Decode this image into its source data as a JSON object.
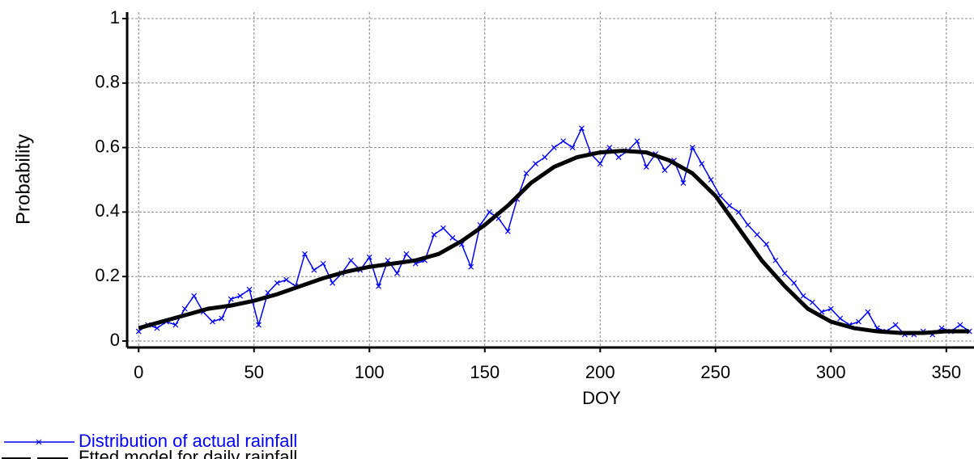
{
  "chart_data": {
    "type": "line",
    "xlabel": "DOY",
    "ylabel": "Probability",
    "xlim": [
      -5,
      362
    ],
    "ylim": [
      -0.02,
      1.02
    ],
    "xticks": [
      0,
      50,
      100,
      150,
      200,
      250,
      300,
      350
    ],
    "yticks": [
      0,
      0.2,
      0.4,
      0.6,
      0.8,
      1
    ],
    "grid": true,
    "legend": "bottom-left",
    "series": [
      {
        "name": "Distribution of actual rainfall",
        "color": "#0000ff",
        "style": "solid-marker",
        "x": [
          0,
          4,
          8,
          12,
          16,
          20,
          24,
          28,
          32,
          36,
          40,
          44,
          48,
          52,
          56,
          60,
          64,
          68,
          72,
          76,
          80,
          84,
          88,
          92,
          96,
          100,
          104,
          108,
          112,
          116,
          120,
          124,
          128,
          132,
          136,
          140,
          144,
          148,
          152,
          156,
          160,
          164,
          168,
          172,
          176,
          180,
          184,
          188,
          192,
          196,
          200,
          204,
          208,
          212,
          216,
          220,
          224,
          228,
          232,
          236,
          240,
          244,
          248,
          252,
          256,
          260,
          264,
          268,
          272,
          276,
          280,
          284,
          288,
          292,
          296,
          300,
          304,
          308,
          312,
          316,
          320,
          324,
          328,
          332,
          336,
          340,
          344,
          348,
          352,
          356,
          360
        ],
        "values": [
          0.03,
          0.05,
          0.04,
          0.06,
          0.05,
          0.1,
          0.14,
          0.09,
          0.06,
          0.07,
          0.13,
          0.14,
          0.16,
          0.05,
          0.15,
          0.18,
          0.19,
          0.17,
          0.27,
          0.22,
          0.24,
          0.18,
          0.21,
          0.25,
          0.22,
          0.26,
          0.17,
          0.25,
          0.21,
          0.27,
          0.24,
          0.25,
          0.33,
          0.35,
          0.32,
          0.3,
          0.23,
          0.36,
          0.4,
          0.38,
          0.34,
          0.44,
          0.52,
          0.55,
          0.57,
          0.6,
          0.62,
          0.6,
          0.66,
          0.58,
          0.55,
          0.6,
          0.57,
          0.59,
          0.62,
          0.54,
          0.58,
          0.53,
          0.56,
          0.49,
          0.6,
          0.55,
          0.5,
          0.45,
          0.42,
          0.4,
          0.36,
          0.33,
          0.3,
          0.25,
          0.21,
          0.18,
          0.14,
          0.12,
          0.09,
          0.1,
          0.07,
          0.05,
          0.06,
          0.09,
          0.04,
          0.03,
          0.05,
          0.02,
          0.02,
          0.03,
          0.02,
          0.04,
          0.03,
          0.05,
          0.03
        ]
      },
      {
        "name": "Ftted model for daily rainfall",
        "color": "#000000",
        "style": "thick",
        "x": [
          0,
          10,
          20,
          30,
          40,
          50,
          60,
          70,
          80,
          90,
          100,
          110,
          120,
          130,
          140,
          150,
          160,
          170,
          180,
          190,
          200,
          210,
          220,
          230,
          240,
          250,
          260,
          270,
          280,
          290,
          300,
          310,
          320,
          330,
          340,
          350,
          360
        ],
        "values": [
          0.04,
          0.06,
          0.08,
          0.1,
          0.11,
          0.125,
          0.145,
          0.17,
          0.195,
          0.215,
          0.23,
          0.24,
          0.25,
          0.27,
          0.31,
          0.36,
          0.42,
          0.49,
          0.54,
          0.57,
          0.585,
          0.59,
          0.585,
          0.56,
          0.52,
          0.45,
          0.35,
          0.25,
          0.17,
          0.1,
          0.06,
          0.04,
          0.03,
          0.025,
          0.025,
          0.03,
          0.03
        ]
      }
    ]
  }
}
